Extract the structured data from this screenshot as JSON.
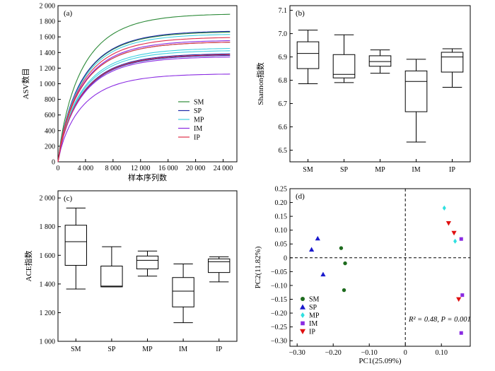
{
  "chart_data": [
    {
      "panel": "(a)",
      "type": "line",
      "xlabel": "样本序列数",
      "ylabel": "ASV数目",
      "xlim": [
        0,
        26000
      ],
      "ylim": [
        0,
        2000
      ],
      "xticks": [
        0,
        4000,
        8000,
        12000,
        16000,
        20000,
        24000
      ],
      "xtick_labels": [
        "0",
        "4 000",
        "8 000",
        "12 000",
        "16 000",
        "20 000",
        "24 000"
      ],
      "yticks": [
        0,
        200,
        400,
        600,
        800,
        1000,
        1200,
        1400,
        1600,
        1800,
        2000
      ],
      "ytick_labels": [
        "0",
        "200",
        "400",
        "600",
        "800",
        "1 000",
        "1 200",
        "1 400",
        "1 600",
        "1 800",
        "2 000"
      ],
      "x_max": 25000,
      "legend_position": "bottom-right",
      "legend": [
        {
          "name": "SM",
          "color": "#2e8b3a"
        },
        {
          "name": "SP",
          "color": "#1f2aa8"
        },
        {
          "name": "MP",
          "color": "#40d0e0"
        },
        {
          "name": "IM",
          "color": "#8a2be2"
        },
        {
          "name": "IP",
          "color": "#e0304a"
        }
      ],
      "curves": [
        {
          "color": "#2e8b3a",
          "asymptote": 1900
        },
        {
          "color": "#2e8b3a",
          "asymptote": 1670
        },
        {
          "color": "#2e8b3a",
          "asymptote": 1540
        },
        {
          "color": "#1f2aa8",
          "asymptote": 1680
        },
        {
          "color": "#1f2aa8",
          "asymptote": 1390
        },
        {
          "color": "#1f2aa8",
          "asymptote": 1370
        },
        {
          "color": "#40d0e0",
          "asymptote": 1640
        },
        {
          "color": "#40d0e0",
          "asymptote": 1460
        },
        {
          "color": "#40d0e0",
          "asymptote": 1430
        },
        {
          "color": "#8a2be2",
          "asymptote": 1560
        },
        {
          "color": "#8a2be2",
          "asymptote": 1350
        },
        {
          "color": "#8a2be2",
          "asymptote": 1130
        },
        {
          "color": "#e0304a",
          "asymptote": 1600
        },
        {
          "color": "#e0304a",
          "asymptote": 1540
        },
        {
          "color": "#e0304a",
          "asymptote": 1380
        }
      ]
    },
    {
      "panel": "(b)",
      "type": "box",
      "ylabel": "Shannon指数",
      "ylim": [
        6.45,
        7.12
      ],
      "yticks": [
        6.5,
        6.6,
        6.7,
        6.8,
        6.9,
        7.0,
        7.1
      ],
      "ytick_labels": [
        "6.5",
        "6.6",
        "6.7",
        "6.8",
        "6.9",
        "7.0",
        "7.1"
      ],
      "categories": [
        "SM",
        "SP",
        "MP",
        "IM",
        "IP"
      ],
      "boxes": [
        {
          "min": 6.785,
          "q1": 6.85,
          "median": 6.915,
          "q3": 6.965,
          "max": 7.015
        },
        {
          "min": 6.79,
          "q1": 6.81,
          "median": 6.825,
          "q3": 6.91,
          "max": 6.995
        },
        {
          "min": 6.83,
          "q1": 6.86,
          "median": 6.88,
          "q3": 6.905,
          "max": 6.93
        },
        {
          "min": 6.535,
          "q1": 6.665,
          "median": 6.795,
          "q3": 6.84,
          "max": 6.89
        },
        {
          "min": 6.77,
          "q1": 6.835,
          "median": 6.9,
          "q3": 6.92,
          "max": 6.935
        }
      ]
    },
    {
      "panel": "(c)",
      "type": "box",
      "ylabel": "ACE指数",
      "ylim": [
        1000,
        2050
      ],
      "yticks": [
        1000,
        1200,
        1400,
        1600,
        1800,
        2000
      ],
      "ytick_labels": [
        "1 000",
        "1 200",
        "1 400",
        "1 600",
        "1 800",
        "2 000"
      ],
      "categories": [
        "SM",
        "SP",
        "MP",
        "IM",
        "IP"
      ],
      "boxes": [
        {
          "min": 1365,
          "q1": 1530,
          "median": 1695,
          "q3": 1810,
          "max": 1930
        },
        {
          "min": 1380,
          "q1": 1380,
          "median": 1385,
          "q3": 1525,
          "max": 1660
        },
        {
          "min": 1455,
          "q1": 1505,
          "median": 1565,
          "q3": 1595,
          "max": 1630
        },
        {
          "min": 1130,
          "q1": 1240,
          "median": 1350,
          "q3": 1445,
          "max": 1540
        },
        {
          "min": 1415,
          "q1": 1480,
          "median": 1555,
          "q3": 1575,
          "max": 1590
        }
      ]
    },
    {
      "panel": "(d)",
      "type": "scatter",
      "xlabel": "PC1(25.09%)",
      "ylabel": "PC2(11.82%)",
      "xlim": [
        -0.32,
        0.18
      ],
      "ylim": [
        -0.32,
        0.25
      ],
      "xticks": [
        -0.3,
        -0.2,
        -0.1,
        0,
        0.1
      ],
      "xtick_labels": [
        "−0.30",
        "−0.20",
        "−0.10",
        "0",
        "0.10"
      ],
      "yticks": [
        -0.3,
        -0.25,
        -0.2,
        -0.15,
        -0.1,
        -0.05,
        0,
        0.05,
        0.1,
        0.15,
        0.2,
        0.25
      ],
      "ytick_labels": [
        "−0.30",
        "−0.25",
        "−0.20",
        "−0.15",
        "−0.10",
        "−0.05",
        "0",
        "0.05",
        "0.10",
        "0.15",
        "0.20",
        "0.25"
      ],
      "annotation_r2": "R² = 0.48, P = 0.001",
      "legend_position": "bottom-left",
      "series": [
        {
          "name": "SM",
          "color": "#1e6b1e",
          "marker": "circle",
          "points": [
            [
              -0.178,
              0.035
            ],
            [
              -0.167,
              -0.02
            ],
            [
              -0.17,
              -0.117
            ]
          ]
        },
        {
          "name": "SP",
          "color": "#1a1acd",
          "marker": "triangle-up",
          "points": [
            [
              -0.243,
              0.07
            ],
            [
              -0.26,
              0.03
            ],
            [
              -0.228,
              -0.06
            ]
          ]
        },
        {
          "name": "MP",
          "color": "#30e0e0",
          "marker": "diamond",
          "points": [
            [
              0.108,
              0.18
            ],
            [
              0.138,
              0.06
            ]
          ]
        },
        {
          "name": "IM",
          "color": "#8a2be2",
          "marker": "square",
          "points": [
            [
              0.155,
              0.068
            ],
            [
              0.158,
              -0.135
            ],
            [
              0.155,
              -0.272
            ]
          ]
        },
        {
          "name": "IP",
          "color": "#e01010",
          "marker": "triangle-down",
          "points": [
            [
              0.12,
              0.125
            ],
            [
              0.135,
              0.09
            ],
            [
              0.148,
              -0.15
            ]
          ]
        }
      ]
    }
  ]
}
